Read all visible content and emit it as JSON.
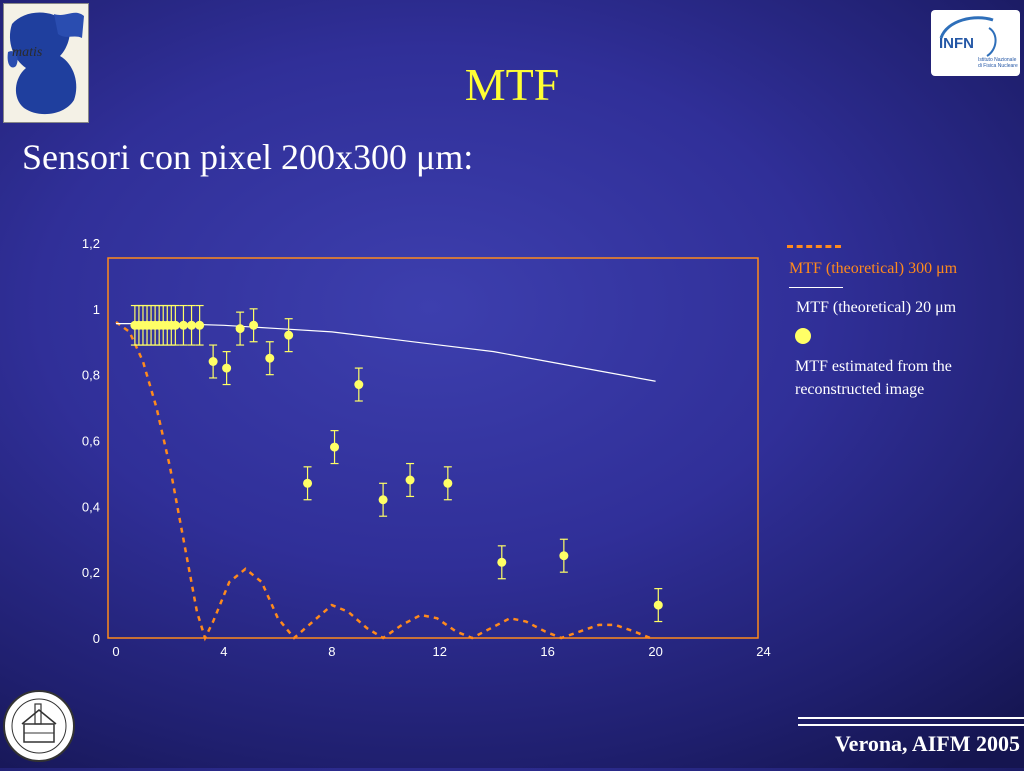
{
  "header": {
    "title": "MTF",
    "subtitle": "Sensori con pixel 200x300 μm:",
    "logo_right_text": "INFN",
    "logo_right_sub1": "Istituto Nazionale",
    "logo_right_sub2": "di Fisica Nucleare"
  },
  "legend": {
    "theoretical_300": "MTF (theoretical) 300 μm",
    "theoretical_20": "MTF (theoretical) 20 μm",
    "estimated": "MTF estimated from the reconstructed image"
  },
  "footer": {
    "text": "Verona, AIFM 2005"
  },
  "colors": {
    "title": "#ffff33",
    "frame": "#ff8a1c",
    "dashed": "#ff8a1c",
    "points": "#ffff66",
    "solid": "#ffffff"
  },
  "chart_data": {
    "type": "line",
    "xlim": [
      0,
      24
    ],
    "ylim": [
      0,
      1.2
    ],
    "x_ticks": [
      "0",
      "4",
      "8",
      "12",
      "16",
      "20",
      "24"
    ],
    "y_ticks": [
      "0",
      "0,2",
      "0,4",
      "0,6",
      "0,8",
      "1",
      "1,2"
    ],
    "grid": false,
    "legend_position": "right",
    "series": [
      {
        "name": "MTF (theoretical) 300 μm",
        "style": "dashed",
        "x": [
          0,
          0.5,
          1,
          1.5,
          2,
          2.5,
          3,
          3.3,
          3.6,
          4.2,
          4.8,
          5.4,
          6.0,
          6.6,
          7.3,
          8.0,
          8.6,
          9.3,
          9.9,
          10.6,
          11.3,
          11.9,
          12.6,
          13.2,
          13.9,
          14.6,
          15.2,
          15.9,
          16.5,
          17.2,
          17.9,
          18.5,
          19.2,
          19.8
        ],
        "y": [
          0.96,
          0.93,
          0.84,
          0.7,
          0.52,
          0.3,
          0.08,
          0.0,
          0.05,
          0.17,
          0.21,
          0.17,
          0.06,
          0.0,
          0.05,
          0.1,
          0.08,
          0.03,
          0.0,
          0.04,
          0.07,
          0.06,
          0.02,
          0.0,
          0.03,
          0.06,
          0.05,
          0.02,
          0.0,
          0.02,
          0.04,
          0.04,
          0.02,
          0.0
        ]
      },
      {
        "name": "MTF (theoretical) 20 μm",
        "style": "solid",
        "x": [
          0,
          2,
          4,
          6,
          8,
          10,
          12,
          14,
          16,
          18,
          20
        ],
        "y": [
          0.955,
          0.955,
          0.95,
          0.94,
          0.93,
          0.91,
          0.89,
          0.87,
          0.84,
          0.81,
          0.78
        ]
      },
      {
        "name": "MTF estimated from the reconstructed image",
        "style": "points",
        "x": [
          0.7,
          0.85,
          1.0,
          1.15,
          1.3,
          1.45,
          1.6,
          1.75,
          1.9,
          2.05,
          2.2,
          2.5,
          2.8,
          3.1,
          3.6,
          4.1,
          4.6,
          5.1,
          5.7,
          6.4,
          7.1,
          8.1,
          9.0,
          9.9,
          10.9,
          12.3,
          14.3,
          16.6,
          20.1
        ],
        "y": [
          0.95,
          0.95,
          0.95,
          0.95,
          0.95,
          0.95,
          0.95,
          0.95,
          0.95,
          0.95,
          0.95,
          0.95,
          0.95,
          0.95,
          0.84,
          0.82,
          0.94,
          0.95,
          0.85,
          0.92,
          0.47,
          0.58,
          0.77,
          0.42,
          0.48,
          0.47,
          0.23,
          0.25,
          0.1
        ],
        "err": [
          0.06,
          0.06,
          0.06,
          0.06,
          0.06,
          0.06,
          0.06,
          0.06,
          0.06,
          0.06,
          0.06,
          0.06,
          0.06,
          0.06,
          0.05,
          0.05,
          0.05,
          0.05,
          0.05,
          0.05,
          0.05,
          0.05,
          0.05,
          0.05,
          0.05,
          0.05,
          0.05,
          0.05,
          0.05
        ]
      }
    ]
  }
}
